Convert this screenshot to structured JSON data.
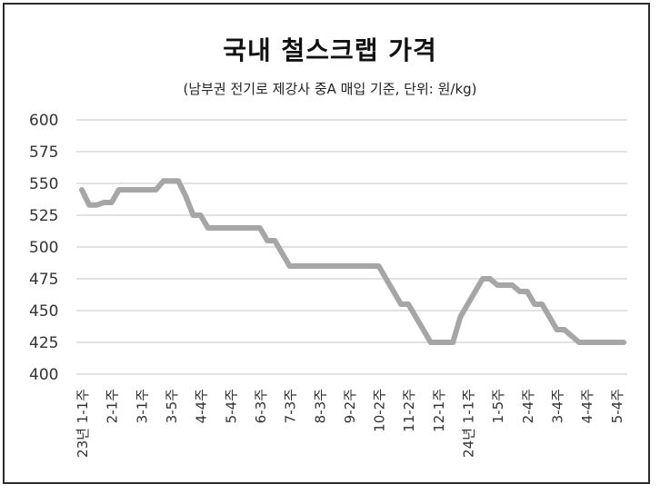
{
  "chart_data": {
    "type": "line",
    "title": "국내 철스크랩 가격",
    "subtitle": "(남부권 전기로 제강사 중A 매입 기준, 단위: 원/kg)",
    "xlabel": "",
    "ylabel": "",
    "ylim": [
      400,
      600
    ],
    "yticks": [
      400,
      425,
      450,
      475,
      500,
      525,
      550,
      575,
      600
    ],
    "grid": true,
    "legend": "none",
    "colors": {
      "line": "#a6a6a6",
      "grid": "#d9d9d9",
      "text": "#333333"
    },
    "x_tick_labels": [
      "23년 1-1주",
      "2-1주",
      "3-1주",
      "3-5주",
      "4-4주",
      "5-4주",
      "6-3주",
      "7-3주",
      "8-3주",
      "9-2주",
      "10-2주",
      "11-2주",
      "12-1주",
      "24년 1-1주",
      "1-5주",
      "2-4주",
      "3-4주",
      "4-4주",
      "5-4주"
    ],
    "x_tick_index": [
      0,
      4,
      8,
      12,
      16,
      20,
      24,
      28,
      32,
      36,
      40,
      44,
      48,
      52,
      56,
      60,
      64,
      68,
      72
    ],
    "values": [
      545,
      533,
      533,
      535,
      535,
      545,
      545,
      545,
      545,
      545,
      545,
      552,
      552,
      552,
      540,
      525,
      525,
      515,
      515,
      515,
      515,
      515,
      515,
      515,
      515,
      505,
      505,
      495,
      485,
      485,
      485,
      485,
      485,
      485,
      485,
      485,
      485,
      485,
      485,
      485,
      485,
      475,
      465,
      455,
      455,
      445,
      435,
      425,
      425,
      425,
      425,
      445,
      455,
      465,
      475,
      475,
      470,
      470,
      470,
      465,
      465,
      455,
      455,
      445,
      435,
      435,
      430,
      425,
      425,
      425,
      425,
      425,
      425,
      425
    ]
  }
}
